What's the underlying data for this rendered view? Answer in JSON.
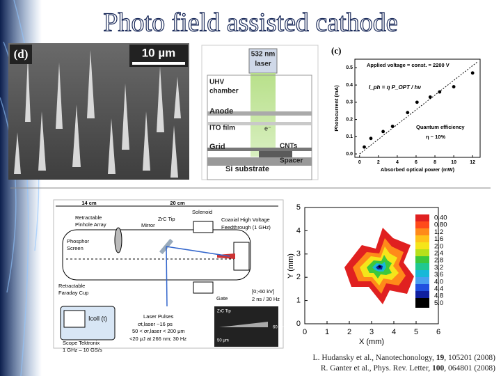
{
  "title": "Photo field assisted cathode",
  "sem": {
    "label": "(d)",
    "scale": "10 µm"
  },
  "schematic": {
    "labels": [
      "532 nm",
      "laser",
      "UHV",
      "chamber",
      "Anode",
      "ITO film",
      "Grid",
      "Si substrate",
      "CNTs",
      "Spacer",
      "e⁻"
    ]
  },
  "photocurrent_plot": {
    "type": "scatter",
    "label": "(c)",
    "x": [
      0.5,
      1.2,
      2.5,
      3.5,
      5.1,
      6.1,
      7.5,
      8.5,
      10,
      12
    ],
    "values": [
      0.04,
      0.09,
      0.13,
      0.16,
      0.24,
      0.3,
      0.33,
      0.36,
      0.39,
      0.47
    ],
    "color": "#000",
    "xlim": [
      -0.5,
      12.8
    ],
    "ylim": [
      -0.02,
      0.55
    ],
    "xticks": [
      0,
      2,
      4,
      6,
      8,
      10,
      12
    ],
    "yticks": [
      {
        "value": 0,
        "label": "0.0"
      },
      0.1,
      0.2,
      0.3,
      0.4,
      0.5
    ],
    "xlabel": "Absorbed optical power (mW)",
    "ylabel": "Photocurrent (mA)",
    "annotations": [
      "Applied voltage = const. = 2200 V",
      "I_ph = η P_OPT / hν",
      "Quantum efficiency",
      "η ~ 10%"
    ]
  },
  "setup": {
    "labels": [
      "14 cm",
      "20 cm",
      "Retractable",
      "Pinhole Array",
      "Solenoid",
      "ZrC Tip",
      "Mirror",
      "Coaxial High Voltage",
      "Feedthrough (1 GHz)",
      "Phosphor",
      "Screen",
      "Retractable",
      "Faraday Cup",
      "Gate",
      "[0;-60 kV]",
      "2 ns / 30 Hz",
      "Laser Pulses",
      "σt,laser ~16 ps",
      "50 < σr,laser < 200 μm",
      "<20 μJ at 266 nm; 30 Hz",
      "Scope Tektronix",
      "1 GHz – 10 GS/s",
      "Icoll (t)",
      "ZrC Tip",
      "50 μm",
      "60 μm"
    ]
  },
  "emission_map": {
    "type": "contour",
    "xlim": [
      0,
      6
    ],
    "ylim": [
      0,
      5
    ],
    "xticks": [
      0,
      1,
      2,
      3,
      4,
      5,
      6
    ],
    "yticks": [
      0,
      1,
      2,
      3,
      4,
      5
    ],
    "xlabel": "X (mm)",
    "ylabel": "Y (mm)",
    "colorbar": [
      "0.40",
      "0.80",
      "1.2",
      "1.6",
      "2.0",
      "2.4",
      "2.8",
      "3.2",
      "3.6",
      "4.0",
      "4.4",
      "4.8",
      "5.0"
    ]
  },
  "citations": [
    {
      "text": "L. Hudansky et al., Nanotechonology, ",
      "bold": "19",
      "rest": ", 105201 (2008)"
    },
    {
      "text": "R. Ganter et al., Phys. Rev. Letter, ",
      "bold": "100",
      "rest": ", 064801 (2008)"
    }
  ]
}
